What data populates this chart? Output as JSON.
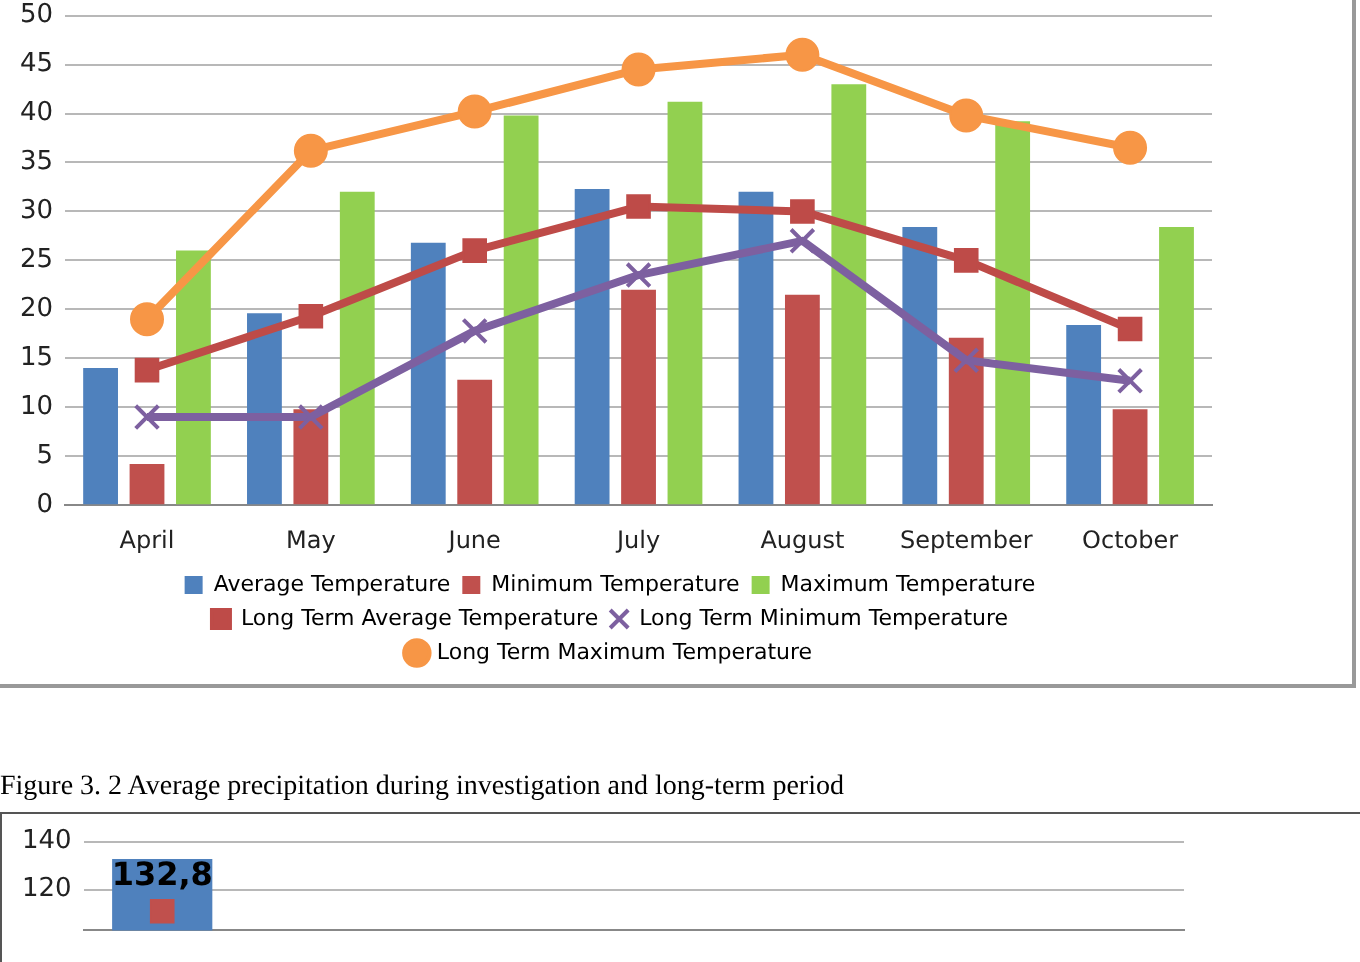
{
  "chart_data": [
    {
      "type": "bar",
      "categories": [
        "April",
        "May",
        "June",
        "July",
        "August",
        "September",
        "October"
      ],
      "series": [
        {
          "name": "Average Temperature",
          "color": "#4f81bd",
          "values": [
            14,
            19.6,
            26.8,
            32.3,
            32,
            28.4,
            18.4
          ]
        },
        {
          "name": "Minimum Temperature",
          "color": "#c0504d",
          "values": [
            4.2,
            9.8,
            12.8,
            22,
            21.5,
            17.1,
            9.8
          ]
        },
        {
          "name": "Maximum Temperature",
          "color": "#92d050",
          "values": [
            26,
            32,
            39.8,
            41.2,
            43,
            39.2,
            28.4
          ]
        },
        {
          "name": "Long Term Average Temperature",
          "type": "line",
          "marker": "square",
          "color": "#be4b48",
          "values": [
            13.8,
            19.3,
            26,
            30.5,
            30,
            25,
            18
          ]
        },
        {
          "name": "Long Term Minimum Temperature",
          "type": "line",
          "marker": "cross",
          "color": "#7d60a0",
          "values": [
            9,
            9,
            17.8,
            23.5,
            27,
            14.8,
            12.7
          ]
        },
        {
          "name": "Long Term Maximum Temperature",
          "type": "line",
          "marker": "circle",
          "color": "#f79646",
          "values": [
            19,
            36.2,
            40.2,
            44.5,
            46,
            39.8,
            36.5
          ]
        }
      ],
      "ylim": [
        0,
        50
      ],
      "yticks": [
        0,
        5,
        10,
        15,
        20,
        25,
        30,
        35,
        40,
        45,
        50
      ],
      "grid": "y",
      "legend": "bottom"
    },
    {
      "type": "bar",
      "title": "Figure 3. 2 Average precipitation during investigation and long-term period",
      "categories": [
        null,
        null,
        null,
        null,
        null,
        null,
        null
      ],
      "series": [
        {
          "color": "#4f81bd",
          "values": [
            132.8,
            null,
            null,
            null,
            null,
            null,
            null
          ],
          "value_labels": [
            "132,8",
            null,
            null,
            null,
            null,
            null,
            null
          ]
        },
        {
          "type": "line",
          "marker": "square",
          "color": "#c0504d",
          "values": [
            111,
            null,
            null,
            null,
            null,
            null,
            null
          ]
        }
      ],
      "ylim": [
        103,
        140
      ],
      "yticks": [
        120,
        140
      ],
      "grid": "y",
      "tick_labels": "y"
    }
  ]
}
